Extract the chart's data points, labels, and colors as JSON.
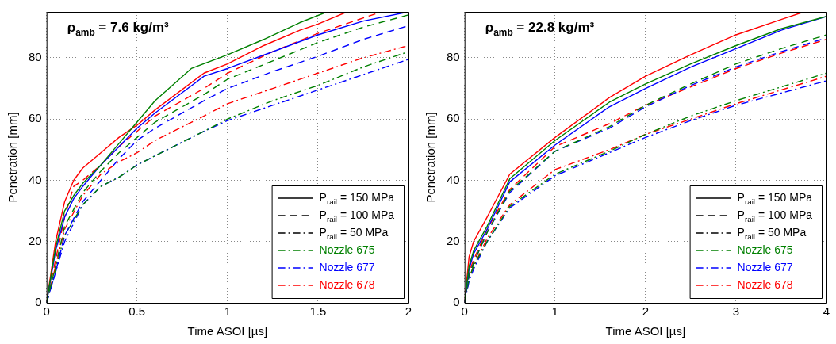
{
  "chart_data": [
    {
      "type": "line",
      "xlabel": "Time ASOI [µs]",
      "ylabel": "Penetration [mm]",
      "annotations": [
        "ρ$_{amb}$ = 7.6 kg/m³"
      ],
      "xlim": [
        0,
        2
      ],
      "ylim": [
        0,
        95
      ],
      "xticks": [
        0,
        0.5,
        1,
        1.5,
        2
      ],
      "yticks": [
        0,
        20,
        40,
        60,
        80
      ],
      "grid": true,
      "legend": "bottom right",
      "marker": "none",
      "series": [
        {
          "color": "#008000",
          "line_style": "solid",
          "x": [
            0,
            0.05,
            0.1,
            0.15,
            0.2,
            0.3,
            0.4,
            0.5,
            0.6,
            0.8,
            1.0,
            1.2,
            1.4,
            1.55
          ],
          "values": [
            0,
            18,
            30,
            35,
            39,
            45,
            52,
            59,
            66,
            76.5,
            81,
            86,
            91.5,
            95
          ]
        },
        {
          "color": "#0000ff",
          "line_style": "solid",
          "x": [
            0,
            0.05,
            0.1,
            0.15,
            0.2,
            0.3,
            0.4,
            0.5,
            0.6,
            0.87,
            1.0,
            1.25,
            1.5,
            1.75,
            2.0
          ],
          "values": [
            0,
            17,
            28,
            34,
            38,
            45,
            51,
            57,
            62,
            74,
            76.5,
            82,
            87.5,
            92,
            95
          ]
        },
        {
          "color": "#ff0000",
          "line_style": "solid",
          "x": [
            0,
            0.05,
            0.1,
            0.15,
            0.2,
            0.3,
            0.4,
            0.5,
            0.6,
            0.87,
            1.0,
            1.2,
            1.4,
            1.5,
            1.66
          ],
          "values": [
            0,
            20,
            33,
            40,
            44,
            49,
            54,
            58,
            63,
            75,
            78,
            84,
            89,
            91,
            95
          ]
        },
        {
          "color": "#008000",
          "line_style": "dashed",
          "x": [
            0,
            0.05,
            0.1,
            0.2,
            0.3,
            0.4,
            0.5,
            0.6,
            0.87,
            1.0,
            1.25,
            1.5,
            1.75,
            2.0
          ],
          "values": [
            0,
            12,
            25,
            36,
            43,
            49,
            54,
            59,
            68,
            73,
            79,
            85,
            90,
            94
          ]
        },
        {
          "color": "#0000ff",
          "line_style": "dashed",
          "x": [
            0,
            0.05,
            0.1,
            0.2,
            0.3,
            0.4,
            0.5,
            0.6,
            0.87,
            1.0,
            1.25,
            1.5,
            1.75,
            2.0
          ],
          "values": [
            0,
            10,
            22,
            33,
            40,
            47,
            53,
            57,
            66,
            70,
            75.5,
            80.5,
            86,
            90.5
          ]
        },
        {
          "color": "#ff0000",
          "line_style": "dashed",
          "x": [
            0,
            0.05,
            0.1,
            0.15,
            0.2,
            0.3,
            0.4,
            0.5,
            0.6,
            0.87,
            1.0,
            1.25,
            1.5,
            1.7,
            1.85
          ],
          "values": [
            0,
            14,
            28,
            38,
            40,
            45,
            51,
            56,
            61,
            70,
            75,
            82,
            88,
            92,
            95
          ]
        },
        {
          "color": "#008000",
          "line_style": "dashdot",
          "x": [
            0,
            0.05,
            0.1,
            0.2,
            0.3,
            0.4,
            0.5,
            0.6,
            0.87,
            1.0,
            1.25,
            1.5,
            1.75,
            2.0
          ],
          "values": [
            0,
            11,
            22,
            32,
            38,
            41,
            45,
            48,
            56,
            60,
            66,
            71,
            77,
            82
          ]
        },
        {
          "color": "#0000ff",
          "line_style": "dashdot",
          "x": [
            0,
            0.05,
            0.1,
            0.2,
            0.3,
            0.4,
            0.5,
            0.6,
            0.87,
            1.0,
            1.5,
            2.0
          ],
          "values": [
            0,
            10,
            20,
            32,
            38,
            41,
            45,
            48,
            56,
            59.5,
            69.5,
            79.5
          ]
        },
        {
          "color": "#ff0000",
          "line_style": "dashdot",
          "x": [
            0,
            0.05,
            0.1,
            0.2,
            0.3,
            0.4,
            0.5,
            0.6,
            0.87,
            1.0,
            1.25,
            1.5,
            1.75,
            2.0
          ],
          "values": [
            0,
            12,
            24,
            35,
            42,
            46,
            49,
            53,
            61,
            65,
            70,
            75,
            80,
            84
          ]
        },
        {
          "name": "P$_{rail}$ = 150 MPa",
          "color": "#000000",
          "line_style": "solid"
        },
        {
          "name": "P$_{rail}$ = 100 MPa",
          "color": "#000000",
          "line_style": "dashed"
        },
        {
          "name": "P$_{rail}$ = 50 MPa",
          "color": "#000000",
          "line_style": "dashdot"
        },
        {
          "name": "Nozzle 675",
          "color": "#008000",
          "line_style": "dashdot"
        },
        {
          "name": "Nozzle 677",
          "color": "#0000ff",
          "line_style": "dashdot"
        },
        {
          "name": "Nozzle 678",
          "color": "#ff0000",
          "line_style": "dashdot"
        }
      ]
    },
    {
      "type": "line",
      "xlabel": "Time ASOI [µs]",
      "ylabel": "Penetration [mm]",
      "annotations": [
        "ρ$_{amb}$ = 22.8 kg/m³"
      ],
      "xlim": [
        0,
        4
      ],
      "ylim": [
        0,
        95
      ],
      "xticks": [
        0,
        1,
        2,
        3,
        4
      ],
      "yticks": [
        0,
        20,
        40,
        60,
        80
      ],
      "grid": true,
      "legend": "bottom right",
      "marker": "none",
      "series": [
        {
          "color": "#008000",
          "line_style": "solid",
          "x": [
            0,
            0.05,
            0.1,
            0.25,
            0.5,
            1.0,
            1.6,
            2.0,
            2.5,
            3.0,
            3.5,
            4.0
          ],
          "values": [
            0,
            12,
            17,
            25,
            40.5,
            53,
            65.5,
            71.5,
            78,
            84,
            89.5,
            93.5
          ]
        },
        {
          "color": "#0000ff",
          "line_style": "solid",
          "x": [
            0,
            0.05,
            0.1,
            0.25,
            0.5,
            1.0,
            1.6,
            2.0,
            2.5,
            3.0,
            3.5,
            4.0
          ],
          "values": [
            0,
            11,
            16,
            24,
            39.5,
            51.5,
            64,
            70,
            77,
            83,
            89,
            93.5
          ]
        },
        {
          "color": "#ff0000",
          "line_style": "solid",
          "x": [
            0,
            0.05,
            0.1,
            0.25,
            0.5,
            1.0,
            1.6,
            2.0,
            2.5,
            3.0,
            3.5,
            3.75
          ],
          "values": [
            0,
            15,
            20,
            28,
            42,
            54,
            67,
            74,
            81,
            87.5,
            92.5,
            95
          ]
        },
        {
          "color": "#008000",
          "line_style": "dashed",
          "x": [
            0,
            0.05,
            0.1,
            0.25,
            0.5,
            1.0,
            1.6,
            2.0,
            2.5,
            3.0,
            3.5,
            4.0
          ],
          "values": [
            0,
            9,
            13,
            23,
            36.5,
            49.5,
            57.5,
            64.5,
            71.5,
            78,
            83,
            87.5
          ]
        },
        {
          "color": "#0000ff",
          "line_style": "dashed",
          "x": [
            0,
            0.05,
            0.1,
            0.25,
            0.5,
            1.0,
            1.6,
            2.0,
            2.5,
            3.0,
            3.5,
            4.0
          ],
          "values": [
            0,
            9,
            13,
            23,
            36,
            49.5,
            57,
            64,
            71,
            77,
            82,
            86.5
          ]
        },
        {
          "color": "#ff0000",
          "line_style": "dashed",
          "x": [
            0,
            0.05,
            0.1,
            0.25,
            0.5,
            1.0,
            1.6,
            2.0,
            2.5,
            3.0,
            3.5,
            4.0
          ],
          "values": [
            0,
            10,
            14,
            24,
            37,
            51,
            58.5,
            64.5,
            70.5,
            76.5,
            81.5,
            86
          ]
        },
        {
          "color": "#008000",
          "line_style": "dashdot",
          "x": [
            0,
            0.05,
            0.1,
            0.25,
            0.5,
            1.0,
            1.6,
            2.0,
            2.5,
            3.0,
            3.5,
            4.0
          ],
          "values": [
            0,
            8,
            12,
            20,
            31.5,
            42,
            49.5,
            55,
            61,
            66,
            70.5,
            75
          ]
        },
        {
          "color": "#0000ff",
          "line_style": "dashdot",
          "x": [
            0,
            0.05,
            0.1,
            0.25,
            0.5,
            1.0,
            1.6,
            2.0,
            2.5,
            3.0,
            3.5,
            4.0
          ],
          "values": [
            0,
            7,
            11,
            20,
            31,
            41.5,
            49,
            54,
            59.5,
            64.5,
            68.5,
            72.5
          ]
        },
        {
          "color": "#ff0000",
          "line_style": "dashdot",
          "x": [
            0,
            0.05,
            0.1,
            0.25,
            0.5,
            1.0,
            1.6,
            2.0,
            2.5,
            3.0,
            3.5,
            4.0
          ],
          "values": [
            0,
            8,
            12,
            21,
            32,
            43.5,
            50,
            55,
            60,
            65,
            69.5,
            74
          ]
        },
        {
          "name": "P$_{rail}$ = 150 MPa",
          "color": "#000000",
          "line_style": "solid"
        },
        {
          "name": "P$_{rail}$ = 100 MPa",
          "color": "#000000",
          "line_style": "dashed"
        },
        {
          "name": "P$_{rail}$ = 50 MPa",
          "color": "#000000",
          "line_style": "dashdot"
        },
        {
          "name": "Nozzle 675",
          "color": "#008000",
          "line_style": "dashdot"
        },
        {
          "name": "Nozzle 677",
          "color": "#0000ff",
          "line_style": "dashdot"
        },
        {
          "name": "Nozzle 678",
          "color": "#ff0000",
          "line_style": "dashdot"
        }
      ]
    }
  ]
}
